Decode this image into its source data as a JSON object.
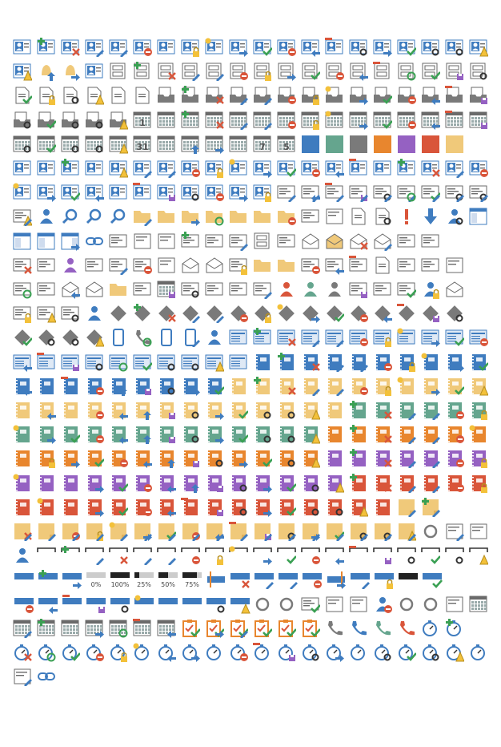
{
  "sheet": {
    "columns": 20,
    "colors": {
      "blue": "#3f7cbf",
      "teal": "#65a58e",
      "gray": "#7a7a7a",
      "orange": "#e8862e",
      "purple": "#9561c2",
      "red": "#d9553a",
      "sand": "#f0c97a",
      "dark": "#333333",
      "line": "#6a6a6a",
      "green": "#3aa053",
      "yellow": "#f3c13a"
    },
    "number_labels": {
      "calendar_day": "1",
      "calendar_month_end": "31",
      "calendar_week": "7",
      "calendar_work_week": "5"
    },
    "percent_labels": [
      "0%",
      "100%",
      "25%",
      "50%",
      "75%"
    ],
    "rows": [
      [
        "contact-card",
        "contact-card-add",
        "contact-card-delete",
        "contact-card-list",
        "contact-card-edit",
        "contact-card-remove",
        "contact-card-web",
        "contact-card-lock",
        "contact-card-new",
        "contact-card-forward",
        "contact-card-check",
        "contact-card-block",
        "contact-card-reply",
        "contact-card-minus",
        "contact-card-group",
        "contact-card-move",
        "contact-card-ok",
        "contact-card-key",
        "contact-card-search",
        "contact-card-warning"
      ],
      [
        "contact-card-alert",
        "bell-up",
        "bell-forward",
        "contact-card-confirm",
        "cabinet",
        "cabinet-add",
        "cabinet-delete",
        "cabinet-list",
        "cabinet-edit",
        "cabinet-remove",
        "cabinet-lock",
        "cabinet-forward",
        "cabinet-check",
        "cabinet-block",
        "cabinet-reply",
        "cabinet-minus",
        "cabinet-sync",
        "cabinet-ok",
        "cabinet-save",
        "cabinet-group"
      ],
      [
        "document-check",
        "document-lock",
        "document-search",
        "document-warning",
        "page-blank",
        "attachment-page",
        "tray-gray",
        "tray-add",
        "tray-delete",
        "tray-list",
        "tray-edit",
        "tray-remove",
        "tray-lock",
        "tray-new",
        "tray-forward",
        "tray-check",
        "tray-block",
        "tray-reply",
        "tray-minus",
        "tray-save"
      ],
      [
        "tray-group",
        "tray-ok",
        "tray-key",
        "tray-search",
        "tray-warning",
        "calendar-day",
        "calendar",
        "calendar-add",
        "calendar-delete",
        "calendar-list",
        "calendar-edit",
        "calendar-remove",
        "calendar-lock",
        "calendar-new",
        "calendar-forward",
        "calendar-check",
        "calendar-block",
        "calendar-reply",
        "calendar-minus",
        "calendar-save"
      ],
      [
        "calendar-group",
        "calendar-ok",
        "calendar-key",
        "calendar-search",
        "calendar-warning",
        "calendar-month-end",
        "calendar-timeline",
        "calendar-up",
        "calendar-right",
        "calendar-strip",
        "calendar-week",
        "calendar-work-week",
        "color-blue",
        "color-teal",
        "color-gray",
        "color-orange",
        "color-purple",
        "color-red",
        "color-sand",
        "blank"
      ],
      [
        "person-card",
        "person-card-time",
        "person-card-add",
        "person-card-clip",
        "person-card-warning",
        "person-card-list",
        "person-card-edit",
        "person-card-remove",
        "person-card-lock",
        "person-card-new",
        "person-card-forward",
        "person-card-check",
        "person-card-block",
        "person-card-reply",
        "person-card-minus",
        "person-badge",
        "person-badge-add",
        "person-badge-delete",
        "person-badge-edit",
        "person-badge-remove"
      ],
      [
        "person-badge-new",
        "person-badge-forward",
        "person-badge-check",
        "person-badge-reply",
        "person-badge-delete2",
        "person-badge-minus",
        "person-badge-save",
        "person-badge-search",
        "person-badge-block",
        "person-badge-move",
        "person-badge-lock",
        "list-card",
        "list-card-reply",
        "list-card-minus",
        "list-card-save",
        "list-card-group",
        "list-card-sync",
        "list-card-ok",
        "list-card-key",
        "list-card-search"
      ],
      [
        "list-card-warning",
        "people-mail",
        "magnifier",
        "magnifier-dark",
        "magnifier-alt",
        "folder-edit",
        "folder",
        "folder-forward",
        "folder-sync",
        "folder-rss",
        "folder-mail",
        "folder-block",
        "window-arrow",
        "arrow-cursor",
        "page-arrow",
        "page-search",
        "exclamation",
        "arrow-down",
        "people-group",
        "panel-layout"
      ],
      [
        "panel-left",
        "panel-split",
        "panel-right",
        "link-chain",
        "mail-card",
        "form-grid",
        "pen-tool",
        "mail-card-add",
        "mail-card-person",
        "mail-card-note",
        "cabinet-card",
        "mail-clip",
        "envelope-open",
        "envelope-sand",
        "envelope-delete",
        "envelope-note",
        "mail-stack",
        "mail-time",
        "blank",
        "blank"
      ],
      [
        "mail-card-delete",
        "mail-card-at",
        "person-purple",
        "mail-card-down",
        "mail-card-edit",
        "mail-card-remove",
        "filter",
        "envelope-open-alt",
        "envelope-person",
        "mail-card-lock",
        "person-folder",
        "person-folder-star",
        "mail-card-block",
        "mail-card-reply",
        "mail-card-minus",
        "document-form",
        "mail-card-chat",
        "mail-card-gear",
        "eraser",
        "blank"
      ],
      [
        "mail-card-sync",
        "mail-card-plain",
        "envelope-back",
        "envelope-open-purple",
        "folder-sand",
        "mail-card-text",
        "calendar-save-purple",
        "mail-card-group",
        "mail-lines",
        "mail-lines-alt",
        "mail-lines-note",
        "person-red",
        "person-green",
        "person-gray",
        "mail-card-save",
        "window-card",
        "mail-card-check",
        "person-lock",
        "envelope-open-plain",
        "blank"
      ],
      [
        "mail-card-lock",
        "mail-card-warn",
        "mail-card-key",
        "people-blue",
        "diamond",
        "diamond-add",
        "diamond-delete",
        "diamond-list",
        "diamond-edit",
        "diamond-remove",
        "diamond-lock",
        "diamond-new",
        "diamond-forward",
        "diamond-check",
        "diamond-block",
        "diamond-reply",
        "diamond-minus",
        "diamond-save",
        "diamond-group",
        "blank"
      ],
      [
        "diamond-ok",
        "diamond-key",
        "diamond-search",
        "diamond-warning",
        "phone",
        "phone-sync",
        "tablet",
        "tablet-list",
        "person-phone",
        "news",
        "news-add",
        "news-delete",
        "news-list",
        "news-edit",
        "news-remove",
        "news-lock",
        "news-new",
        "news-forward",
        "news-check",
        "news-block"
      ],
      [
        "news-reply",
        "news-minus",
        "news-save",
        "news-group",
        "news-sync",
        "news-ok",
        "news-key",
        "news-search",
        "news-warning",
        "news-doc",
        "notebook-blue",
        "notebook-blue-add",
        "notebook-blue-delete",
        "notebook-blue-list",
        "notebook-blue-edit",
        "notebook-blue-remove",
        "notebook-blue-lock",
        "notebook-blue-new",
        "notebook-blue-forward",
        "notebook-blue-check"
      ],
      [
        "notebook-blue-reply",
        "notebook-blue-check2",
        "notebook-blue-minus",
        "notebook-blue-block",
        "notebook-blue-up",
        "notebook-blue-save",
        "notebook-blue-group",
        "notebook-blue-move",
        "notebook-blue-ok",
        "notebook-sand",
        "notebook-sand-add",
        "notebook-sand-delete",
        "notebook-sand-list",
        "notebook-sand-edit",
        "notebook-sand-remove",
        "notebook-sand-lock",
        "notebook-sand-new",
        "notebook-sand-forward",
        "notebook-sand-check",
        "notebook-sand-warning"
      ],
      [
        "notebook-sand-new2",
        "notebook-sand-reply",
        "notebook-sand-check2",
        "notebook-sand-block",
        "notebook-sand-back",
        "notebook-sand-up",
        "notebook-sand-save",
        "notebook-sand-group",
        "notebook-sand-move",
        "notebook-sand-ok",
        "notebook-sand-key",
        "notebook-sand-search",
        "notebook-sand-alert",
        "notebook-sand-plain",
        "notebook-teal-add",
        "notebook-teal-delete",
        "notebook-teal-list",
        "notebook-teal-edit",
        "notebook-teal-remove",
        "notebook-teal-lock"
      ],
      [
        "notebook-teal-new",
        "notebook-teal-forward",
        "notebook-teal-check",
        "notebook-teal-block",
        "notebook-teal-reply",
        "notebook-teal-up",
        "notebook-teal-save",
        "notebook-teal-group",
        "notebook-teal-move",
        "notebook-teal-ok",
        "notebook-teal-key",
        "notebook-teal-search",
        "notebook-teal-warning",
        "notebook-orange",
        "notebook-orange-add",
        "notebook-orange-delete",
        "notebook-orange-list",
        "notebook-orange-edit",
        "notebook-orange-remove",
        "notebook-orange-new"
      ],
      [
        "notebook-orange-remove2",
        "notebook-orange-lock",
        "notebook-orange-forward",
        "notebook-orange-check",
        "notebook-orange-block",
        "notebook-orange-reply",
        "notebook-orange-up",
        "notebook-orange-save",
        "notebook-orange-group",
        "notebook-orange-move",
        "notebook-orange-ok",
        "notebook-orange-key",
        "notebook-orange-warning",
        "notebook-purple",
        "notebook-purple-add",
        "notebook-purple-delete",
        "notebook-purple-list",
        "notebook-purple-edit",
        "notebook-purple-remove",
        "notebook-purple-lock"
      ],
      [
        "notebook-purple-new",
        "notebook-purple-remove2",
        "notebook-purple-lock2",
        "notebook-purple-forward",
        "notebook-purple-check",
        "notebook-purple-block",
        "notebook-purple-reply",
        "notebook-purple-up",
        "notebook-purple-save",
        "notebook-purple-group",
        "notebook-purple-move",
        "notebook-purple-ok",
        "notebook-purple-key",
        "notebook-purple-warning",
        "notebook-red-add",
        "notebook-red-delete",
        "notebook-red-list",
        "notebook-red-edit",
        "notebook-red-remove",
        "notebook-red-lock"
      ],
      [
        "notebook-red",
        "notebook-red-new",
        "notebook-red-remove2",
        "notebook-red-forward",
        "notebook-red-check",
        "notebook-red-block",
        "notebook-red-reply",
        "notebook-red-minus",
        "notebook-red-save",
        "notebook-red-group",
        "notebook-red-move",
        "notebook-red-ok",
        "notebook-red-key",
        "notebook-red-search",
        "notebook-red-warning",
        "notebook-red-plain",
        "note-sand",
        "note-sand-add",
        "blank",
        "blank"
      ],
      [
        "note-sand-delete",
        "note-sand-edit",
        "note-sand-remove",
        "note-sand-lock",
        "note-sand-new",
        "note-sand-forward",
        "note-sand-check",
        "note-sand-block",
        "note-sand-reply",
        "note-sand-minus",
        "note-sand-save",
        "note-sand-group",
        "note-sand-move",
        "note-sand-ok",
        "note-sand-key",
        "note-sand-search",
        "note-sand-warning",
        "paperclip",
        "list-box",
        "gantt"
      ],
      [
        "people-board",
        "bracket",
        "bracket-add",
        "bracket-list",
        "bracket-delete",
        "bracket-note",
        "bracket-edit",
        "bracket-remove",
        "bracket-lock",
        "bracket-new",
        "bracket-forward",
        "bracket-check",
        "bracket-block",
        "bracket-reply",
        "bracket-minus",
        "bracket-save",
        "bracket-group",
        "bracket-ok",
        "bracket-search",
        "bracket-warning"
      ],
      [
        "bar-blue",
        "bar-add",
        "bar-forward",
        "bar-0",
        "bar-100",
        "bar-25",
        "bar-50",
        "bar-75",
        "bar-split-left",
        "bar-delete",
        "bar-list",
        "bar-edit",
        "bar-remove",
        "bar-split-right",
        "bar-list-box",
        "bar-lock",
        "bar-dark",
        "bar-check",
        "blank",
        "blank"
      ],
      [
        "bar-block",
        "bar-reply",
        "bar-minus",
        "bar-save",
        "bar-group",
        "bar-sparkle",
        "bar-check2",
        "bar-lock2",
        "bar-search",
        "bar-warning",
        "refresh",
        "refresh-off",
        "window-check",
        "id-card",
        "gantt-alt",
        "person-block",
        "gear",
        "tools",
        "help-book",
        "grid-calendar"
      ],
      [
        "grid-calendar-list",
        "grid-calendar-add",
        "grid-calendar-help",
        "grid-calendar-forward",
        "grid-calendar-sync",
        "grid-calendar-minus",
        "grid-calendar-reply",
        "clipboard-check",
        "clipboard-check-move",
        "clipboard-check-edit",
        "clipboard-check-ok",
        "clipboard-check-person",
        "clipboard-check-time",
        "phone-gray",
        "phone-blue",
        "phone-teal",
        "phone-red",
        "stopwatch",
        "stopwatch-add",
        "blank"
      ],
      [
        "stopwatch-delete",
        "stopwatch-sync",
        "stopwatch-check",
        "stopwatch-remove",
        "stopwatch-lock",
        "stopwatch-new",
        "stopwatch-reply",
        "stopwatch-forward",
        "stopwatch-pause",
        "stopwatch-block",
        "stopwatch-minus",
        "stopwatch-save",
        "stopwatch-group",
        "stopwatch-move",
        "stopwatch-play",
        "stopwatch-key",
        "stopwatch-ok",
        "stopwatch-search",
        "stopwatch-warning",
        "stopwatch-plain"
      ],
      [
        "info-list",
        "link-break"
      ]
    ]
  }
}
